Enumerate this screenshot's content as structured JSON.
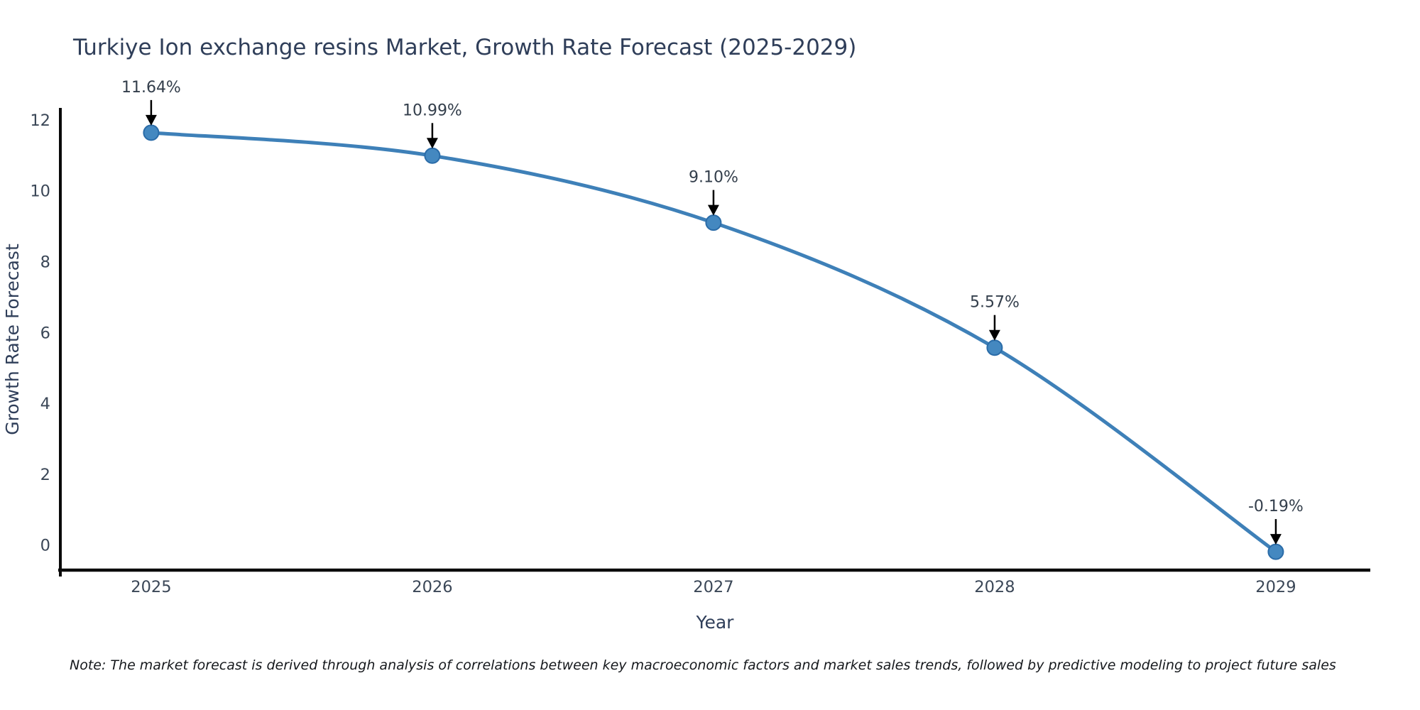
{
  "note": "Note: The market forecast is derived through analysis of correlations between key macroeconomic factors and market sales trends, followed by predictive modeling to project future sales",
  "colors": {
    "line": "#3e80b8",
    "marker_fill": "#4488c0",
    "marker_edge": "#2b6ca8",
    "annotation_arrow": "#000000",
    "axis_spine": "#0a0a0a",
    "title_text": "#2f3e59",
    "tick_text": "#3b4757",
    "annotation_text": "#333e4b",
    "note_text": "#15181c",
    "background": "#ffffff"
  },
  "chart_data": {
    "type": "line",
    "title": "Turkiye Ion exchange resins Market, Growth Rate Forecast (2025-2029)",
    "xlabel": "Year",
    "ylabel": "Growth Rate Forecast",
    "x": [
      2025,
      2026,
      2027,
      2028,
      2029
    ],
    "series": [
      {
        "name": "Growth Rate Forecast",
        "values": [
          11.64,
          10.99,
          9.1,
          5.57,
          -0.19
        ]
      }
    ],
    "point_labels": [
      "11.64%",
      "10.99%",
      "9.10%",
      "5.57%",
      "-0.19%"
    ],
    "xticks": [
      "2025",
      "2026",
      "2027",
      "2028",
      "2029"
    ],
    "yticks": [
      0,
      2,
      4,
      6,
      8,
      10,
      12
    ],
    "xlim": [
      2024.677,
      2029.336
    ],
    "ylim": [
      -0.77,
      12.34
    ],
    "grid": false,
    "legend": null,
    "line_smooth": true,
    "marker": "circle",
    "annotations": "value labels with black down arrows above each point"
  }
}
